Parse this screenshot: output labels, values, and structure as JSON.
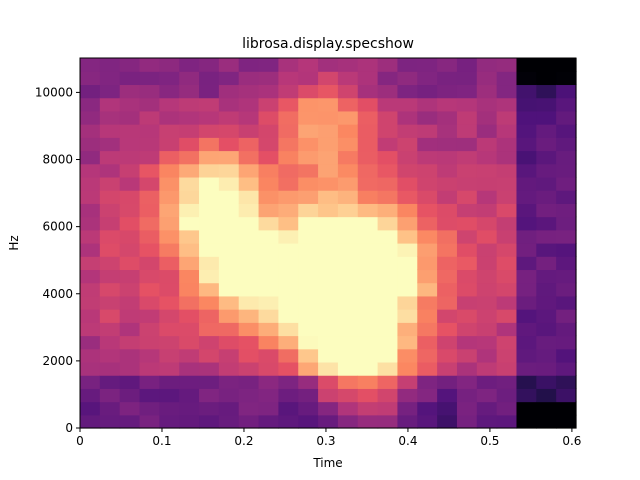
{
  "chart_data": {
    "type": "heatmap",
    "title": "librosa.display.specshow",
    "xlabel": "Time",
    "ylabel": "Hz",
    "xlim": [
      0,
      0.605
    ],
    "ylim": [
      0,
      11025
    ],
    "xticks": [
      0,
      0.1,
      0.2,
      0.3,
      0.4,
      0.5,
      0.6
    ],
    "xtick_labels": [
      "0",
      "0.1",
      "0.2",
      "0.3",
      "0.4",
      "0.5",
      "0.6"
    ],
    "yticks": [
      0,
      2000,
      4000,
      6000,
      8000,
      10000
    ],
    "ytick_labels": [
      "0",
      "2000",
      "4000",
      "6000",
      "8000",
      "10000"
    ],
    "colormap": "magma",
    "grid": false,
    "frames": 25,
    "frame_duration": 0.0242,
    "bins": 28,
    "bin_height_hz": 393.75,
    "intensity_description": "Normalized 0-1 magnitude (dB-scaled), estimated per frame x frequency bin",
    "hotspots": [
      {
        "t": 0.16,
        "f": 6800,
        "level": 0.9
      },
      {
        "t": 0.2,
        "f": 4700,
        "level": 0.85
      },
      {
        "t": 0.3,
        "f": 3600,
        "level": 0.95
      },
      {
        "t": 0.31,
        "f": 5200,
        "level": 0.9
      },
      {
        "t": 0.35,
        "f": 1850,
        "level": 0.9
      },
      {
        "t": 0.38,
        "f": 4800,
        "level": 0.82
      },
      {
        "t": 0.3,
        "f": 9000,
        "level": 0.75
      }
    ]
  }
}
